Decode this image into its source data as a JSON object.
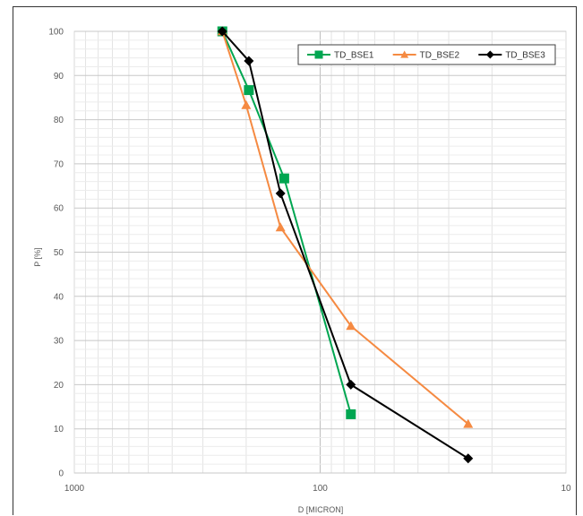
{
  "chart_data": {
    "type": "scatter",
    "xlabel": "D [MICRON]",
    "ylabel": "P [%]",
    "xscale": "log",
    "x_reversed": true,
    "xlim": [
      1000,
      10
    ],
    "ylim": [
      0,
      100
    ],
    "x_ticks": [
      "1000",
      "100",
      "10"
    ],
    "y_ticks": [
      "0",
      "10",
      "20",
      "30",
      "40",
      "50",
      "60",
      "70",
      "80",
      "90",
      "100"
    ],
    "grid": true,
    "legend_position": "top-right",
    "series": [
      {
        "name": "TD_BSE1",
        "color": "#00a651",
        "marker": "square",
        "x": [
          250,
          195,
          140,
          75
        ],
        "y": [
          100,
          86.7,
          66.7,
          13.3
        ]
      },
      {
        "name": "TD_BSE2",
        "color": "#f58a42",
        "marker": "triangle",
        "x": [
          250,
          200,
          145,
          75,
          25
        ],
        "y": [
          100,
          83.3,
          55.6,
          33.3,
          11.1
        ]
      },
      {
        "name": "TD_BSE3",
        "color": "#000000",
        "marker": "diamond",
        "x": [
          250,
          195,
          145,
          75,
          25
        ],
        "y": [
          100,
          93.3,
          63.3,
          20,
          3.3
        ]
      }
    ]
  }
}
